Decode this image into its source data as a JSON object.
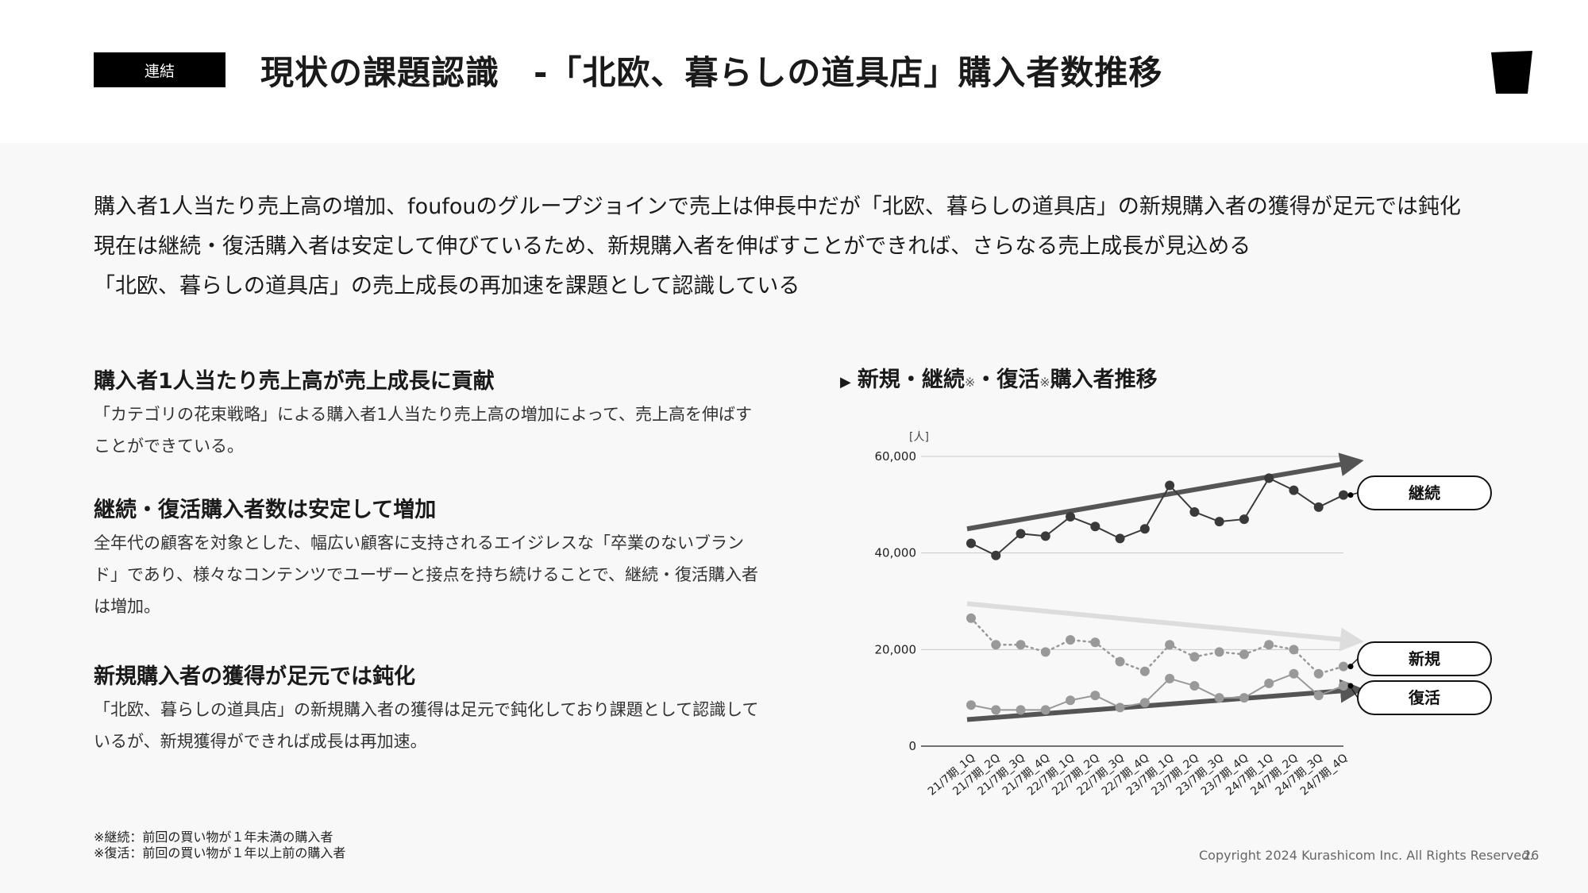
{
  "header": {
    "tag": "連結",
    "title": "現状の課題認識　-「北欧、暮らしの道具店」購入者数推移"
  },
  "intro": {
    "lines": [
      "購入者1人当たり売上高の増加、foufouのグループジョインで売上は伸長中だが「北欧、暮らしの道具店」の新規購入者の獲得が足元では鈍化",
      "現在は継続・復活購入者は安定して伸びているため、新規購入者を伸ばすことができれば、さらなる売上成長が見込める",
      "「北欧、暮らしの道具店」の売上成長の再加速を課題として認識している"
    ]
  },
  "sections": [
    {
      "heading": "購入者1人当たり売上高が売上成長に貢献",
      "text": "「カテゴリの花束戦略」による購入者1人当たり売上高の増加によって、売上高を伸ばすことができている。"
    },
    {
      "heading": "継続・復活購入者数は安定して増加",
      "text": "全年代の顧客を対象とした、幅広い顧客に支持されるエイジレスな「卒業のないブランド」であり、様々なコンテンツでユーザーと接点を持ち続けることで、継続・復活購入者は増加。"
    },
    {
      "heading": "新規購入者の獲得が足元では鈍化",
      "text": "「北欧、暮らしの道具店」の新規購入者の獲得は足元で鈍化しており課題として認識しているが、新規獲得ができれば成長は再加速。"
    }
  ],
  "chart_heading": {
    "marker": "▶",
    "part1": "新規・継続",
    "note1": "※",
    "part2": "・復活",
    "note2": "※",
    "part3": "購入者推移"
  },
  "chart_data": {
    "type": "line",
    "ylabel": "[人]",
    "ylim": [
      0,
      60000
    ],
    "yticks": [
      0,
      20000,
      40000,
      60000
    ],
    "ytick_labels": [
      "0",
      "20,000",
      "40,000",
      "60,000"
    ],
    "grid": true,
    "categories": [
      "21/7期_1Q",
      "21/7期_2Q",
      "21/7期_3Q",
      "21/7期_4Q",
      "22/7期_1Q",
      "22/7期_2Q",
      "22/7期_3Q",
      "22/7期_4Q",
      "23/7期_1Q",
      "23/7期_2Q",
      "23/7期_3Q",
      "23/7期_4Q",
      "24/7期_1Q",
      "24/7期_2Q",
      "24/7期_3Q",
      "24/7期_4Q"
    ],
    "series": [
      {
        "name": "継続",
        "color": "#3a3a3a",
        "style": "solid",
        "values": [
          42000,
          39500,
          44000,
          43500,
          47500,
          45500,
          43000,
          45000,
          54000,
          48500,
          46500,
          47000,
          55500,
          53000,
          49500,
          52000
        ]
      },
      {
        "name": "新規",
        "color": "#999999",
        "style": "dotted",
        "values": [
          26500,
          21000,
          21000,
          19500,
          22000,
          21500,
          17500,
          15500,
          21000,
          18500,
          19500,
          19000,
          21000,
          20000,
          15000,
          16500
        ]
      },
      {
        "name": "復活",
        "color": "#999999",
        "style": "solid",
        "values": [
          8500,
          7500,
          7500,
          7500,
          9500,
          10500,
          8000,
          9000,
          14000,
          12500,
          10000,
          10000,
          13000,
          15000,
          10500,
          12500
        ]
      }
    ],
    "trend_arrows": [
      {
        "series": "継続",
        "from": 45000,
        "to": 58500,
        "color": "#555555"
      },
      {
        "series": "新規",
        "from": 29500,
        "to": 22000,
        "color": "#dddddd"
      },
      {
        "series": "復活",
        "from": 5500,
        "to": 11500,
        "color": "#555555"
      }
    ]
  },
  "footnotes": [
    "※継続：前回の買い物が１年未満の購入者",
    "※復活：前回の買い物が１年以上前の購入者"
  ],
  "footer": {
    "copyright": "Copyright 2024 Kurashicom Inc. All Rights Reserved.",
    "page": "26"
  }
}
